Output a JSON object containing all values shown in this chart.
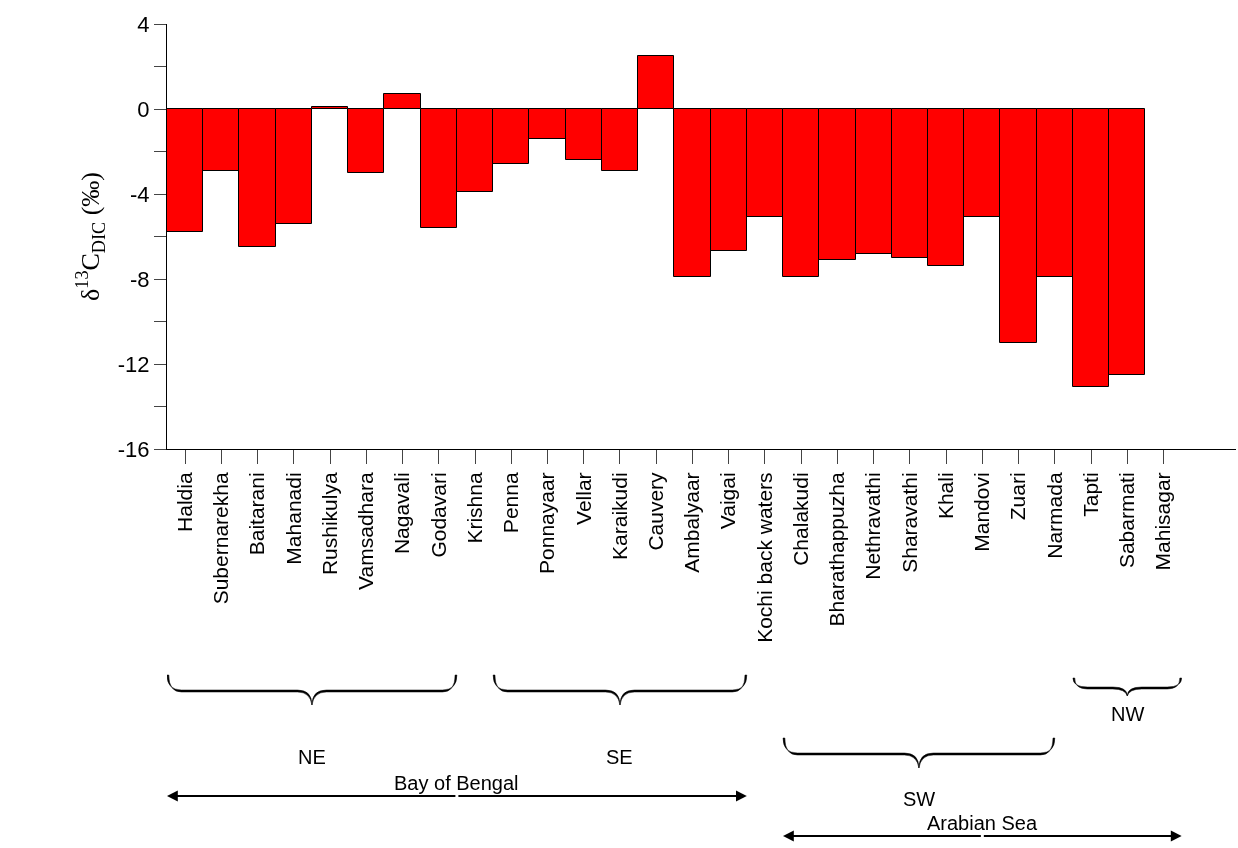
{
  "chart_data": {
    "type": "bar",
    "ylabel": "δ$^{13}$C$_{DIC}$ (‰)",
    "categories": [
      "Haldia",
      "Subernarekha",
      "Baitarani",
      "Mahanadi",
      "Rushikulya",
      "Vamsadhara",
      "Nagavali",
      "Godavari",
      "Krishna",
      "Penna",
      "Ponnayaar",
      "Vellar",
      "Karaikudi",
      "Cauvery",
      "Ambalyaar",
      "Vaigai",
      "Kochi back waters",
      "Chalakudi",
      "Bharathappuzha",
      "Nethravathi",
      "Sharavathi",
      "Khali",
      "Mandovi",
      "Zuari",
      "Narmada",
      "Tapti",
      "Sabarmati",
      "Mahisagar"
    ],
    "values": [
      -5.8,
      -2.9,
      -6.5,
      -5.4,
      0.1,
      -3.0,
      0.7,
      -5.6,
      -3.9,
      -2.6,
      -1.4,
      -2.4,
      -2.9,
      2.5,
      -7.9,
      -6.7,
      -5.1,
      -7.9,
      -7.1,
      -6.8,
      -7.0,
      -7.4,
      -5.1,
      -11.0,
      -7.9,
      -13.1,
      -12.5,
      null
    ],
    "color": "#ff0000",
    "ylim": [
      -16,
      4
    ],
    "yticks": [
      -16,
      {
        "value": -14,
        "label": null
      },
      -12,
      {
        "value": -10,
        "label": null
      },
      -8,
      {
        "value": -6,
        "label": null
      },
      -4,
      {
        "value": -2,
        "label": null
      },
      0,
      {
        "value": 2,
        "label": null
      },
      4
    ],
    "legend": false,
    "annotations": [
      "NE",
      "SE",
      "SW",
      "NW",
      "Bay of Bengal",
      "Arabian Sea"
    ]
  }
}
